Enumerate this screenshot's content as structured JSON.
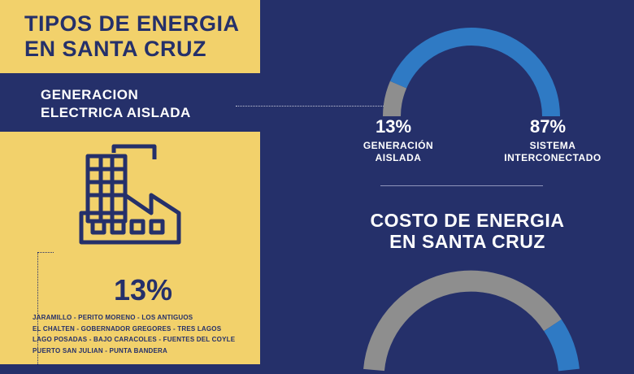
{
  "header": {
    "title_line1": "TIPOS DE ENERGIA",
    "title_line2": "EN SANTA CRUZ"
  },
  "band": {
    "line1": "GENERACION",
    "line2": "ELECTRICA AISLADA"
  },
  "factory_section": {
    "percent": "13%",
    "towns": [
      "JARAMILLO - PERITO MORENO - LOS ANTIGUOS",
      "EL CHALTEN  -  GOBERNADOR GREGORES  -  TRES LAGOS",
      "LAGO POSADAS - BAJO CARACOLES - FUENTES DEL COYLE",
      "PUERTO SAN JULIAN - PUNTA BANDERA"
    ]
  },
  "gauge1": {
    "left_pct": "13%",
    "left_label_line1": "GENERACIÓN",
    "left_label_line2": "AISLADA",
    "left_fraction": 0.13,
    "right_pct": "87%",
    "right_label_line1": "SISTEMA",
    "right_label_line2": "INTERCONECTADO",
    "right_fraction": 0.87
  },
  "cost": {
    "title_line1": "COSTO DE ENERGIA",
    "title_line2": "EN SANTA CRUZ"
  },
  "colors": {
    "navy": "#25306a",
    "yellow": "#f2d16b",
    "blue": "#2f7ac4",
    "gray": "#8e8e8e"
  }
}
